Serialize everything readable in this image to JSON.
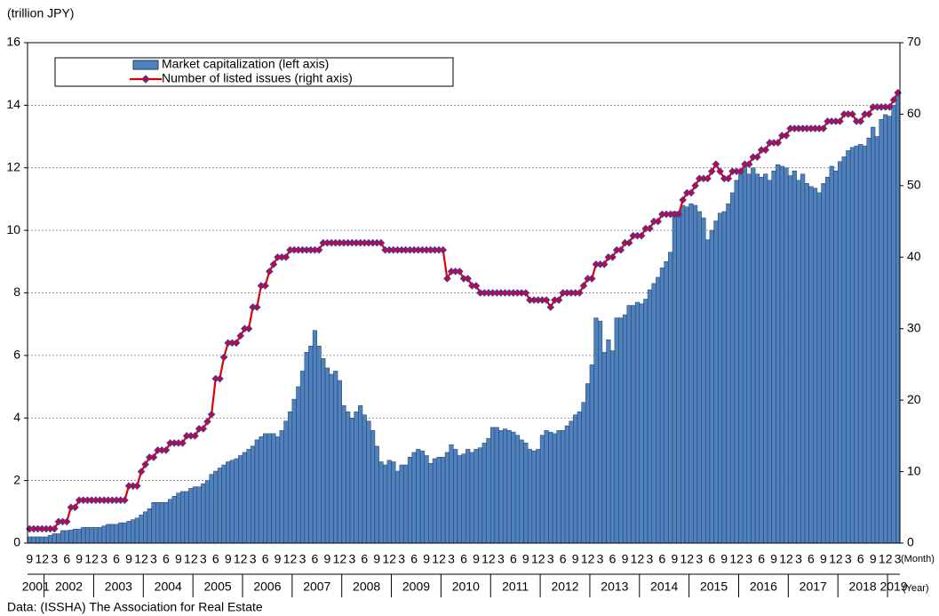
{
  "chart_data": {
    "type": "bar_line",
    "y_unit_label": "(trillion JPY)",
    "x_month_label": "(Month)",
    "x_year_label": "(Year)",
    "source": "Data: (ISSHA) The Association for Real Estate",
    "categories": [
      "9",
      null,
      null,
      "12",
      null,
      null,
      "3",
      null,
      null,
      "6",
      null,
      null,
      "9",
      null,
      null,
      "12",
      null,
      null,
      "3",
      null,
      null,
      "6",
      null,
      null,
      "9",
      null,
      null,
      "12",
      null,
      null,
      "3",
      null,
      null,
      "6",
      null,
      null,
      "9",
      null,
      null,
      "12",
      null,
      null,
      "3",
      null,
      null,
      "6",
      null,
      null,
      "9",
      null,
      null,
      "12",
      null,
      null,
      "3",
      null,
      null,
      "6",
      null,
      null,
      "9",
      null,
      null,
      "12",
      null,
      null,
      "3",
      null,
      null,
      "6",
      null,
      null,
      "9",
      null,
      null,
      "12",
      null,
      null,
      "3",
      null,
      null,
      "6",
      null,
      null,
      "9",
      null,
      null,
      "12",
      null,
      null,
      "3",
      null,
      null,
      "6",
      null,
      null,
      "9",
      null,
      null,
      "12",
      null,
      null,
      "3",
      null,
      null,
      "6",
      null,
      null,
      "9",
      null,
      null,
      "12",
      null,
      null,
      "3",
      null,
      null,
      "6",
      null,
      null,
      "9",
      null,
      null,
      "12",
      null,
      null,
      "3",
      null,
      null,
      "6",
      null,
      null,
      "9",
      null,
      null,
      "12",
      null,
      null,
      "3",
      null,
      null,
      "6",
      null,
      null,
      "9",
      null,
      null,
      "12",
      null,
      null,
      "3",
      null,
      null,
      "6",
      null,
      null,
      "9",
      null,
      null,
      "12",
      null,
      null,
      "3",
      null,
      null,
      "6",
      null,
      null,
      "9",
      null,
      null,
      "12",
      null,
      null,
      "3",
      null,
      null,
      "6",
      null,
      null,
      "9",
      null,
      null,
      "12",
      null,
      null,
      "3",
      null,
      null,
      "6",
      null,
      null,
      "9",
      null,
      null,
      "12",
      null,
      null,
      "3",
      null,
      null,
      "6",
      null,
      null,
      "9",
      null,
      null,
      "12",
      null,
      null,
      "3"
    ],
    "years": [
      "2001",
      "2002",
      "2003",
      "2004",
      "2005",
      "2006",
      "2007",
      "2008",
      "2009",
      "2010",
      "2011",
      "2012",
      "2013",
      "2014",
      "2015",
      "2016",
      "2017",
      "2018",
      "2019"
    ],
    "series": [
      {
        "name": "Market capitalization (left axis)",
        "kind": "bar",
        "color": "#4f81bd",
        "edge": "#1f3c66",
        "axis": "y",
        "values": [
          0.2,
          0.2,
          0.2,
          0.2,
          0.2,
          0.25,
          0.3,
          0.3,
          0.4,
          0.4,
          0.42,
          0.45,
          0.45,
          0.5,
          0.5,
          0.5,
          0.5,
          0.5,
          0.55,
          0.6,
          0.6,
          0.6,
          0.65,
          0.65,
          0.7,
          0.75,
          0.8,
          0.9,
          1.0,
          1.1,
          1.3,
          1.3,
          1.3,
          1.3,
          1.4,
          1.5,
          1.6,
          1.65,
          1.65,
          1.75,
          1.8,
          1.8,
          1.9,
          2.0,
          2.2,
          2.3,
          2.4,
          2.5,
          2.6,
          2.65,
          2.7,
          2.8,
          2.9,
          3.0,
          3.1,
          3.3,
          3.4,
          3.5,
          3.5,
          3.5,
          3.4,
          3.6,
          3.9,
          4.2,
          4.6,
          5.0,
          5.5,
          6.1,
          6.3,
          6.8,
          6.3,
          5.9,
          5.6,
          5.4,
          5.5,
          5.2,
          4.4,
          4.2,
          4.0,
          4.2,
          4.4,
          4.1,
          3.9,
          3.6,
          3.1,
          2.6,
          2.5,
          2.65,
          2.6,
          2.3,
          2.5,
          2.5,
          2.75,
          2.9,
          3.0,
          2.95,
          2.8,
          2.55,
          2.7,
          2.75,
          2.75,
          2.9,
          3.15,
          3.0,
          2.8,
          2.85,
          3.0,
          2.9,
          3.0,
          3.05,
          3.2,
          3.35,
          3.7,
          3.7,
          3.6,
          3.65,
          3.6,
          3.55,
          3.45,
          3.3,
          3.2,
          3.0,
          2.95,
          3.0,
          3.45,
          3.6,
          3.55,
          3.5,
          3.6,
          3.6,
          3.75,
          3.9,
          4.1,
          4.2,
          4.5,
          5.1,
          5.7,
          7.2,
          7.1,
          6.1,
          6.5,
          6.15,
          7.2,
          7.2,
          7.3,
          7.6,
          7.6,
          7.7,
          7.65,
          7.8,
          8.1,
          8.3,
          8.5,
          8.8,
          9.0,
          9.3,
          10.6,
          10.6,
          10.8,
          10.75,
          10.85,
          10.8,
          10.6,
          10.4,
          9.7,
          10.0,
          10.3,
          10.55,
          10.6,
          10.85,
          11.2,
          11.6,
          11.85,
          12.05,
          11.8,
          12.0,
          11.8,
          11.7,
          11.8,
          11.6,
          11.9,
          12.1,
          12.05,
          12.0,
          11.75,
          11.9,
          11.6,
          11.8,
          11.5,
          11.4,
          11.35,
          11.2,
          11.5,
          11.7,
          12.05,
          11.9,
          12.2,
          12.35,
          12.55,
          12.65,
          12.7,
          12.75,
          12.7,
          12.95,
          13.3,
          13.0,
          13.55,
          13.7,
          13.65,
          14.0,
          14.3
        ]
      },
      {
        "name": "Number of listed issues (right axis)",
        "kind": "line",
        "color": "#e00000",
        "marker_color": "#d40030",
        "marker_edge": "#3b3ba8",
        "axis": "y2",
        "values": [
          2,
          2,
          2,
          2,
          2,
          2,
          2,
          3,
          3,
          3,
          5,
          5,
          6,
          6,
          6,
          6,
          6,
          6,
          6,
          6,
          6,
          6,
          6,
          6,
          8,
          8,
          8,
          10,
          11,
          12,
          12,
          13,
          13,
          13,
          14,
          14,
          14,
          14,
          15,
          15,
          15,
          16,
          16,
          17,
          18,
          23,
          23,
          26,
          28,
          28,
          28,
          29,
          30,
          30,
          33,
          33,
          36,
          36,
          38,
          39,
          40,
          40,
          40,
          41,
          41,
          41,
          41,
          41,
          41,
          41,
          41,
          42,
          42,
          42,
          42,
          42,
          42,
          42,
          42,
          42,
          42,
          42,
          42,
          42,
          42,
          42,
          41,
          41,
          41,
          41,
          41,
          41,
          41,
          41,
          41,
          41,
          41,
          41,
          41,
          41,
          41,
          37,
          38,
          38,
          38,
          37,
          37,
          36,
          36,
          35,
          35,
          35,
          35,
          35,
          35,
          35,
          35,
          35,
          35,
          35,
          35,
          34,
          34,
          34,
          34,
          34,
          33,
          34,
          34,
          35,
          35,
          35,
          35,
          35,
          36,
          37,
          37,
          39,
          39,
          39,
          40,
          40,
          41,
          41,
          42,
          42,
          43,
          43,
          43,
          44,
          44,
          45,
          45,
          46,
          46,
          46,
          46,
          46,
          48,
          49,
          49,
          50,
          51,
          51,
          51,
          52,
          53,
          52,
          51,
          51,
          52,
          52,
          52,
          53,
          53,
          54,
          54,
          55,
          55,
          56,
          56,
          56,
          57,
          57,
          58,
          58,
          58,
          58,
          58,
          58,
          58,
          58,
          58,
          59,
          59,
          59,
          59,
          60,
          60,
          60,
          59,
          59,
          60,
          60,
          61,
          61,
          61,
          61,
          61,
          62,
          63
        ]
      }
    ],
    "ylim": [
      0,
      16
    ],
    "yticks": [
      0,
      2,
      4,
      6,
      8,
      10,
      12,
      14,
      16
    ],
    "y2lim": [
      0,
      70
    ],
    "y2ticks": [
      0,
      10,
      20,
      30,
      40,
      50,
      60,
      70
    ],
    "grid": true,
    "legend": "top-left"
  }
}
